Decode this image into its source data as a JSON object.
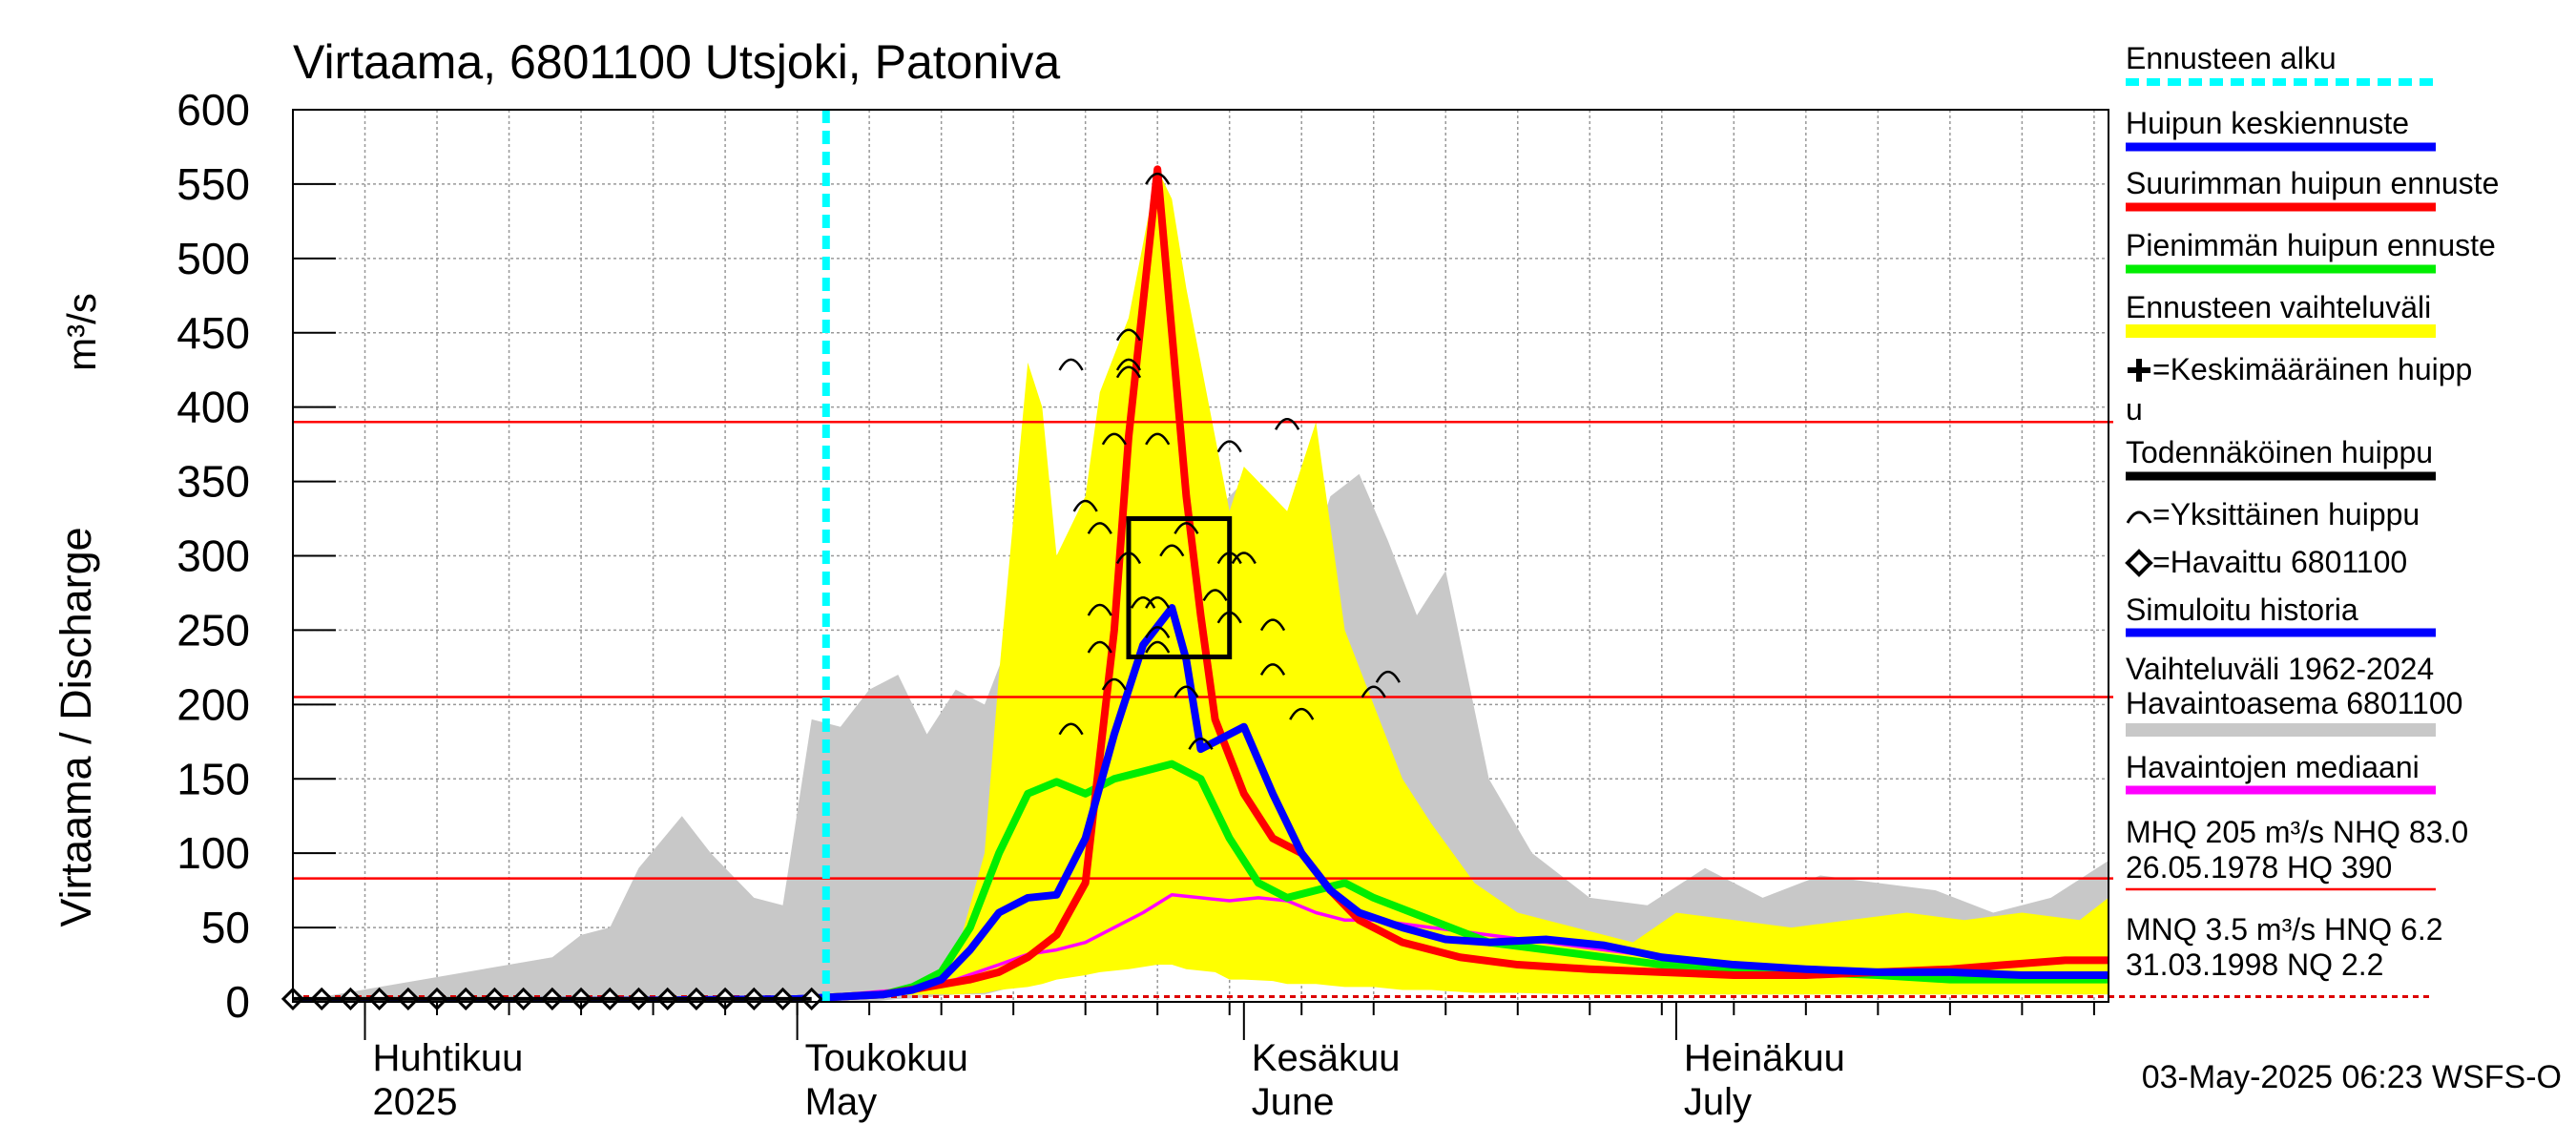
{
  "chart_data": {
    "type": "line",
    "title": "Virtaama, 6801100 Utsjoki, Patoniva",
    "ylabel": "Virtaama / Discharge",
    "yunit": "m³/s",
    "ylim": [
      0,
      600
    ],
    "yticks": [
      0,
      50,
      100,
      150,
      200,
      250,
      300,
      350,
      400,
      450,
      500,
      550,
      600
    ],
    "xlim": [
      "2025-03-27",
      "2025-07-31"
    ],
    "month_labels": [
      {
        "date": "2025-04-01",
        "fi": "Huhtikuu",
        "en": "2025"
      },
      {
        "date": "2025-05-01",
        "fi": "Toukokuu",
        "en": "May"
      },
      {
        "date": "2025-06-01",
        "fi": "Kesäkuu",
        "en": "June"
      },
      {
        "date": "2025-07-01",
        "fi": "Heinäkuu",
        "en": "July"
      }
    ],
    "forecast_start": "2025-05-03",
    "reference_lines": [
      {
        "name": "HQ",
        "value": 390,
        "color": "#ff0000"
      },
      {
        "name": "MHQ",
        "value": 205,
        "color": "#ff0000"
      },
      {
        "name": "NHQ",
        "value": 83.0,
        "color": "#ff0000"
      }
    ],
    "series": [
      {
        "name": "Vaihteluväli 1962-2024 Havaintoasema 6801100",
        "kind": "band",
        "color": "#c8c8c8",
        "x": [
          "2025-03-27",
          "2025-04-14",
          "2025-04-16",
          "2025-04-18",
          "2025-04-20",
          "2025-04-23",
          "2025-04-25",
          "2025-04-28",
          "2025-04-30",
          "2025-05-02",
          "2025-05-04",
          "2025-05-06",
          "2025-05-08",
          "2025-05-10",
          "2025-05-12",
          "2025-05-14",
          "2025-05-16",
          "2025-05-18",
          "2025-05-19",
          "2025-05-21",
          "2025-05-23",
          "2025-05-26",
          "2025-05-28",
          "2025-05-30",
          "2025-06-01",
          "2025-06-03",
          "2025-06-05",
          "2025-06-07",
          "2025-06-09",
          "2025-06-11",
          "2025-06-13",
          "2025-06-15",
          "2025-06-18",
          "2025-06-21",
          "2025-06-25",
          "2025-06-29",
          "2025-07-03",
          "2025-07-07",
          "2025-07-11",
          "2025-07-15",
          "2025-07-19",
          "2025-07-23",
          "2025-07-27",
          "2025-07-31"
        ],
        "upper": [
          0,
          30,
          45,
          50,
          90,
          125,
          100,
          70,
          65,
          190,
          185,
          210,
          220,
          180,
          210,
          200,
          250,
          260,
          275,
          210,
          170,
          320,
          300,
          330,
          350,
          300,
          280,
          340,
          355,
          310,
          260,
          290,
          150,
          100,
          70,
          65,
          90,
          70,
          85,
          80,
          75,
          60,
          70,
          95
        ],
        "lower": [
          0,
          0,
          0,
          0,
          0,
          0,
          0,
          0,
          0,
          0,
          0,
          0,
          2,
          3,
          5,
          5,
          10,
          15,
          25,
          30,
          60,
          70,
          65,
          55,
          60,
          45,
          40,
          30,
          30,
          25,
          20,
          15,
          10,
          10,
          5,
          5,
          5,
          5,
          5,
          5,
          5,
          5,
          5,
          5
        ]
      },
      {
        "name": "Ennusteen vaihteluväli",
        "kind": "band",
        "color": "#ffff00",
        "x": [
          "2025-05-03",
          "2025-05-07",
          "2025-05-10",
          "2025-05-12",
          "2025-05-14",
          "2025-05-15",
          "2025-05-17",
          "2025-05-18",
          "2025-05-19",
          "2025-05-21",
          "2025-05-22",
          "2025-05-24",
          "2025-05-26",
          "2025-05-27",
          "2025-05-28",
          "2025-05-30",
          "2025-05-31",
          "2025-06-01",
          "2025-06-03",
          "2025-06-04",
          "2025-06-06",
          "2025-06-08",
          "2025-06-10",
          "2025-06-12",
          "2025-06-14",
          "2025-06-17",
          "2025-06-20",
          "2025-06-24",
          "2025-06-28",
          "2025-07-01",
          "2025-07-05",
          "2025-07-09",
          "2025-07-13",
          "2025-07-17",
          "2025-07-21",
          "2025-07-25",
          "2025-07-29",
          "2025-07-31"
        ],
        "upper": [
          5,
          8,
          12,
          30,
          100,
          220,
          430,
          400,
          300,
          340,
          410,
          460,
          560,
          540,
          480,
          380,
          330,
          360,
          340,
          330,
          390,
          250,
          200,
          150,
          120,
          80,
          60,
          50,
          40,
          60,
          55,
          50,
          55,
          60,
          55,
          60,
          55,
          70
        ],
        "lower": [
          3,
          4,
          5,
          5,
          6,
          8,
          10,
          12,
          15,
          18,
          20,
          22,
          25,
          25,
          22,
          20,
          15,
          15,
          14,
          12,
          12,
          10,
          10,
          8,
          8,
          6,
          6,
          5,
          5,
          5,
          5,
          5,
          5,
          5,
          5,
          5,
          5,
          5
        ]
      },
      {
        "name": "Havaittu 6801100",
        "kind": "observed",
        "color": "#000000",
        "x": [
          "2025-03-27",
          "2025-03-29",
          "2025-03-31",
          "2025-04-02",
          "2025-04-04",
          "2025-04-06",
          "2025-04-08",
          "2025-04-10",
          "2025-04-12",
          "2025-04-14",
          "2025-04-16",
          "2025-04-18",
          "2025-04-20",
          "2025-04-22",
          "2025-04-24",
          "2025-04-26",
          "2025-04-28",
          "2025-04-30",
          "2025-05-02"
        ],
        "values": [
          2,
          2,
          2,
          2,
          2,
          2,
          2,
          2,
          2,
          2,
          2,
          2,
          2,
          2,
          2,
          2,
          2,
          2,
          2
        ]
      },
      {
        "name": "Havaintojen mediaani",
        "kind": "line",
        "color": "#ff00ff",
        "x": [
          "2025-03-27",
          "2025-04-20",
          "2025-05-02",
          "2025-05-08",
          "2025-05-12",
          "2025-05-15",
          "2025-05-17",
          "2025-05-19",
          "2025-05-21",
          "2025-05-23",
          "2025-05-25",
          "2025-05-27",
          "2025-05-29",
          "2025-05-31",
          "2025-06-02",
          "2025-06-04",
          "2025-06-06",
          "2025-06-08",
          "2025-06-10",
          "2025-06-14",
          "2025-06-18",
          "2025-06-22",
          "2025-06-26",
          "2025-06-30",
          "2025-07-05",
          "2025-07-10",
          "2025-07-15",
          "2025-07-20",
          "2025-07-25",
          "2025-07-31"
        ],
        "values": [
          0,
          1,
          3,
          8,
          15,
          25,
          32,
          35,
          40,
          50,
          60,
          72,
          70,
          68,
          70,
          68,
          60,
          55,
          55,
          50,
          45,
          40,
          35,
          30,
          25,
          20,
          18,
          16,
          15,
          15
        ]
      },
      {
        "name": "Simuloitu historia",
        "kind": "line",
        "color": "#0000ff",
        "x": [
          "2025-03-27",
          "2025-04-20",
          "2025-05-01",
          "2025-05-03"
        ],
        "values": [
          0,
          1,
          2,
          3
        ]
      },
      {
        "name": "Pienimmän huipun ennuste",
        "kind": "line",
        "color": "#00ee00",
        "x": [
          "2025-05-03",
          "2025-05-07",
          "2025-05-09",
          "2025-05-11",
          "2025-05-13",
          "2025-05-15",
          "2025-05-17",
          "2025-05-19",
          "2025-05-21",
          "2025-05-23",
          "2025-05-25",
          "2025-05-27",
          "2025-05-29",
          "2025-05-31",
          "2025-06-02",
          "2025-06-04",
          "2025-06-06",
          "2025-06-08",
          "2025-06-10",
          "2025-06-14",
          "2025-06-18",
          "2025-06-22",
          "2025-06-26",
          "2025-06-30",
          "2025-07-05",
          "2025-07-10",
          "2025-07-15",
          "2025-07-20",
          "2025-07-25",
          "2025-07-31"
        ],
        "values": [
          3,
          5,
          10,
          20,
          50,
          100,
          140,
          148,
          140,
          150,
          155,
          160,
          150,
          110,
          80,
          70,
          75,
          80,
          70,
          55,
          40,
          35,
          30,
          25,
          22,
          20,
          18,
          15,
          15,
          15
        ]
      },
      {
        "name": "Suurimman huipun ennuste",
        "kind": "line",
        "color": "#ff0000",
        "x": [
          "2025-05-03",
          "2025-05-07",
          "2025-05-10",
          "2025-05-13",
          "2025-05-15",
          "2025-05-17",
          "2025-05-19",
          "2025-05-21",
          "2025-05-23",
          "2025-05-24",
          "2025-05-25",
          "2025-05-26",
          "2025-05-27",
          "2025-05-28",
          "2025-05-29",
          "2025-05-30",
          "2025-06-01",
          "2025-06-03",
          "2025-06-05",
          "2025-06-07",
          "2025-06-09",
          "2025-06-12",
          "2025-06-16",
          "2025-06-20",
          "2025-06-25",
          "2025-06-30",
          "2025-07-05",
          "2025-07-10",
          "2025-07-15",
          "2025-07-20",
          "2025-07-24",
          "2025-07-28",
          "2025-07-31"
        ],
        "values": [
          3,
          5,
          10,
          15,
          20,
          30,
          45,
          80,
          250,
          380,
          470,
          560,
          450,
          340,
          260,
          190,
          140,
          110,
          100,
          75,
          55,
          40,
          30,
          25,
          22,
          20,
          18,
          18,
          20,
          22,
          25,
          28,
          28
        ]
      },
      {
        "name": "Huipun keskiennuste",
        "kind": "line",
        "color": "#0000ff",
        "x": [
          "2025-05-03",
          "2025-05-07",
          "2025-05-09",
          "2025-05-11",
          "2025-05-13",
          "2025-05-15",
          "2025-05-17",
          "2025-05-19",
          "2025-05-21",
          "2025-05-23",
          "2025-05-25",
          "2025-05-27",
          "2025-05-28",
          "2025-05-29",
          "2025-05-30",
          "2025-06-01",
          "2025-06-03",
          "2025-06-05",
          "2025-06-07",
          "2025-06-09",
          "2025-06-12",
          "2025-06-15",
          "2025-06-18",
          "2025-06-22",
          "2025-06-26",
          "2025-06-30",
          "2025-07-05",
          "2025-07-10",
          "2025-07-15",
          "2025-07-20",
          "2025-07-25",
          "2025-07-31"
        ],
        "values": [
          3,
          5,
          8,
          15,
          35,
          60,
          70,
          72,
          110,
          180,
          240,
          265,
          230,
          170,
          175,
          185,
          140,
          100,
          75,
          60,
          50,
          42,
          40,
          42,
          38,
          30,
          25,
          22,
          20,
          20,
          18,
          18
        ]
      },
      {
        "name": "Yksittäinen huippu",
        "kind": "peaks",
        "color": "#000000",
        "x": [
          "2025-05-20",
          "2025-05-20",
          "2025-05-21",
          "2025-05-22",
          "2025-05-22",
          "2025-05-22",
          "2025-05-23",
          "2025-05-23",
          "2025-05-24",
          "2025-05-24",
          "2025-05-24",
          "2025-05-24",
          "2025-05-25",
          "2025-05-26",
          "2025-05-26",
          "2025-05-26",
          "2025-05-26",
          "2025-05-26",
          "2025-05-27",
          "2025-05-28",
          "2025-05-28",
          "2025-05-29",
          "2025-05-30",
          "2025-05-31",
          "2025-05-31",
          "2025-05-31",
          "2025-06-01",
          "2025-06-03",
          "2025-06-03",
          "2025-06-04",
          "2025-06-05",
          "2025-06-10",
          "2025-06-11"
        ],
        "values": [
          430,
          185,
          335,
          320,
          265,
          240,
          380,
          215,
          450,
          430,
          425,
          300,
          270,
          555,
          380,
          270,
          250,
          240,
          305,
          320,
          210,
          175,
          275,
          375,
          260,
          300,
          300,
          255,
          225,
          390,
          195,
          210,
          220
        ]
      },
      {
        "name": "Todennäköinen huippu",
        "kind": "box",
        "color": "#000000",
        "x0": "2025-05-24",
        "x1": "2025-05-31",
        "y0": 232,
        "y1": 325
      }
    ]
  },
  "legend": {
    "items": [
      {
        "label": "Ennusteen alku",
        "color": "#00ffff",
        "style": "dash"
      },
      {
        "label": "Huipun keskiennuste",
        "color": "#0000ff",
        "style": "line"
      },
      {
        "label": "Suurimman huipun ennuste",
        "color": "#ff0000",
        "style": "line"
      },
      {
        "label": "Pienimmän huipun ennuste",
        "color": "#00ee00",
        "style": "line"
      },
      {
        "label": "Ennusteen vaihteluväli",
        "color": "#ffff00",
        "style": "band"
      },
      {
        "label_line1": "=Keskimääräinen huipp",
        "label_line2": "u",
        "style": "plus"
      },
      {
        "label": "Todennäköinen huippu",
        "color": "#000000",
        "style": "line"
      },
      {
        "label": "=Yksittäinen huippu",
        "style": "arch"
      },
      {
        "label": "=Havaittu 6801100",
        "style": "diamond"
      },
      {
        "label": "Simuloitu historia",
        "color": "#0000ff",
        "style": "line"
      },
      {
        "label_line1": "Vaihteluväli 1962-2024",
        "label_line2": " Havaintoasema 6801100",
        "color": "#c8c8c8",
        "style": "band"
      },
      {
        "label": "Havaintojen mediaani",
        "color": "#ff00ff",
        "style": "line"
      }
    ],
    "stats1": {
      "line1": "MHQ  205 m³/s NHQ 83.0",
      "line2": "26.05.1978 HQ  390"
    },
    "stats2": {
      "line1": "MNQ  3.5 m³/s HNQ  6.2",
      "line2": "31.03.1998 NQ  2.2"
    }
  },
  "footer": {
    "timestamp": "03-May-2025 06:23 WSFS-O"
  }
}
